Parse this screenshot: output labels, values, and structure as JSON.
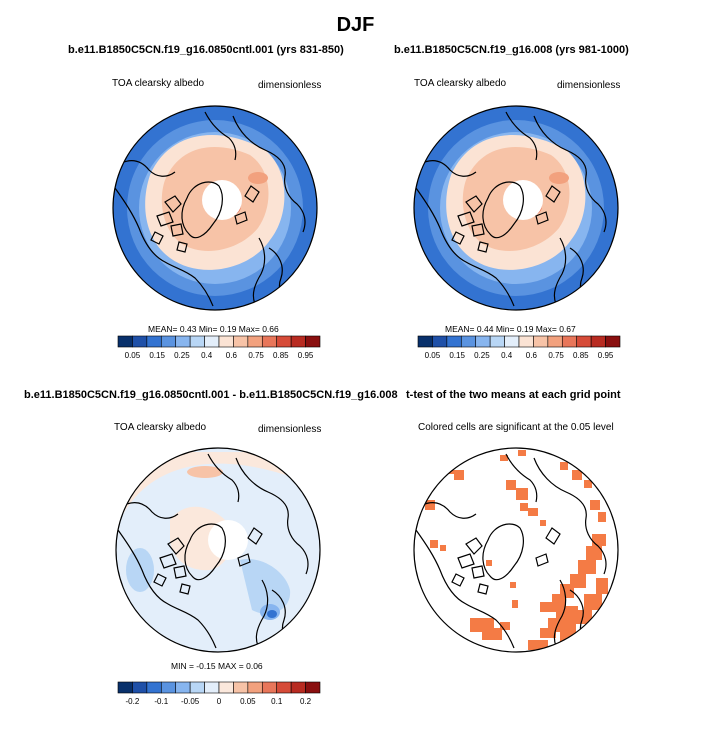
{
  "season": "DJF",
  "palette": {
    "full": [
      "#08306b",
      "#1f50a8",
      "#3373d1",
      "#5a93e0",
      "#87b5ef",
      "#b8d6f5",
      "#e3eefa",
      "#fbe3d4",
      "#f7c3a7",
      "#f2a17e",
      "#e8765a",
      "#d64b38",
      "#b82b21",
      "#8a0f0f"
    ],
    "diff": [
      "#08306b",
      "#1f50a8",
      "#3373d1",
      "#5a93e0",
      "#87b5ef",
      "#b8d6f5",
      "#e3eefa",
      "#fbe8dc",
      "#f7c3a7",
      "#f2a17e",
      "#e8765a",
      "#d64b38",
      "#b82b21",
      "#8a0f0f"
    ],
    "signif": "#f47b45"
  },
  "panels": {
    "top_left": {
      "title": "b.e11.B1850C5CN.f19_g16.0850cntl.001 (yrs 831-850)",
      "variable": "TOA clearsky albedo",
      "units": "dimensionless",
      "mean_label": "MEAN=",
      "mean": "0.43",
      "min_label": "Min=",
      "min": "0.19",
      "max_label": "Max=",
      "max": "0.66"
    },
    "top_right": {
      "title": "b.e11.B1850C5CN.f19_g16.008 (yrs 981-1000)",
      "variable": "TOA clearsky albedo",
      "units": "dimensionless",
      "mean_label": "MEAN=",
      "mean": "0.44",
      "min_label": "Min=",
      "min": "0.19",
      "max_label": "Max=",
      "max": "0.67"
    },
    "bottom_left": {
      "title": "b.e11.B1850C5CN.f19_g16.0850cntl.001 - b.e11.B1850C5CN.f19_g16.008",
      "variable": "TOA clearsky albedo",
      "units": "dimensionless",
      "minmax": "MIN = -0.15 MAX = 0.06"
    },
    "bottom_right": {
      "title": "t-test of the two means at each grid point",
      "subtitle": "Colored cells are significant at the 0.05 level"
    }
  },
  "chart_data": [
    {
      "type": "heatmap",
      "projection": "north polar stereographic",
      "title": "b.e11.B1850C5CN.f19_g16.0850cntl.001 (yrs 831-850)",
      "variable": "TOA clearsky albedo",
      "units": "dimensionless",
      "colorbar_levels": [
        0.05,
        0.15,
        0.25,
        0.4,
        0.6,
        0.75,
        0.85,
        0.95
      ],
      "colorbar_labels": [
        "0.05",
        "0.15",
        "0.25",
        "0.4",
        "0.6",
        "0.75",
        "0.85",
        "0.95"
      ],
      "mean": 0.43,
      "min": 0.19,
      "max": 0.66
    },
    {
      "type": "heatmap",
      "projection": "north polar stereographic",
      "title": "b.e11.B1850C5CN.f19_g16.008 (yrs 981-1000)",
      "variable": "TOA clearsky albedo",
      "units": "dimensionless",
      "colorbar_levels": [
        0.05,
        0.15,
        0.25,
        0.4,
        0.6,
        0.75,
        0.85,
        0.95
      ],
      "colorbar_labels": [
        "0.05",
        "0.15",
        "0.25",
        "0.4",
        "0.6",
        "0.75",
        "0.85",
        "0.95"
      ],
      "mean": 0.44,
      "min": 0.19,
      "max": 0.67
    },
    {
      "type": "heatmap",
      "projection": "north polar stereographic",
      "title": "b.e11.B1850C5CN.f19_g16.0850cntl.001 - b.e11.B1850C5CN.f19_g16.008",
      "variable": "TOA clearsky albedo",
      "units": "dimensionless",
      "colorbar_levels": [
        -0.2,
        -0.1,
        -0.05,
        0,
        0.05,
        0.1,
        0.2
      ],
      "colorbar_labels": [
        "-0.2",
        "-0.1",
        "-0.05",
        "0",
        "0.05",
        "0.1",
        "0.2"
      ],
      "min": -0.15,
      "max": 0.06
    },
    {
      "type": "heatmap",
      "projection": "north polar stereographic",
      "title": "t-test of the two means at each grid point",
      "subtitle": "Colored cells are significant at the 0.05 level",
      "significance_level": 0.05
    }
  ]
}
